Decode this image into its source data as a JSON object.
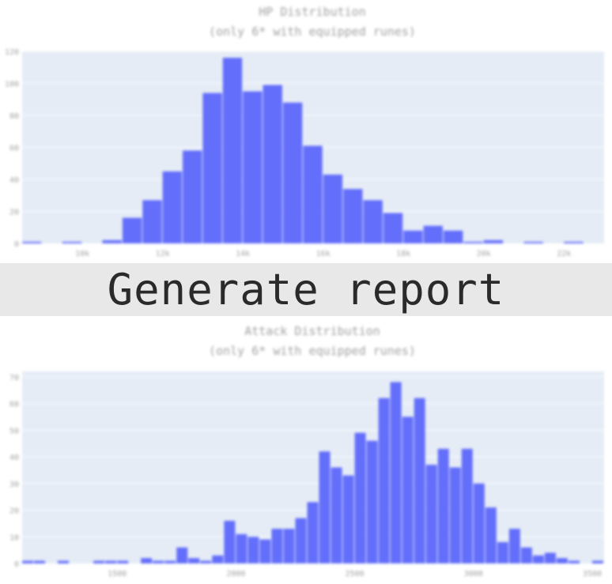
{
  "report_button": {
    "label": "Generate report"
  },
  "charts": [
    {
      "title": "HP Distribution",
      "subtitle": "(only 6* with equipped runes)"
    },
    {
      "title": "Attack Distribution",
      "subtitle": "(only 6* with equipped runes)"
    }
  ],
  "colors": {
    "bar": "#636efa",
    "plot_bg": "#e5ecf6",
    "text": "#a0a0a0",
    "grid": "#ffffff"
  },
  "chart_data": [
    {
      "type": "bar",
      "title": "HP Distribution",
      "subtitle": "(only 6* with equipped runes)",
      "xlim": [
        8500,
        23000
      ],
      "ylim": [
        0,
        120
      ],
      "xticks": [
        10000,
        12000,
        14000,
        16000,
        18000,
        20000,
        22000
      ],
      "xtick_labels": [
        "10k",
        "12k",
        "14k",
        "16k",
        "18k",
        "20k",
        "22k"
      ],
      "yticks": [
        0,
        20,
        40,
        60,
        80,
        100,
        120
      ],
      "bin_width": 500,
      "bin_starts": [
        8500,
        9000,
        9500,
        10000,
        10500,
        11000,
        11500,
        12000,
        12500,
        13000,
        13500,
        14000,
        14500,
        15000,
        15500,
        16000,
        16500,
        17000,
        17500,
        18000,
        18500,
        19000,
        19500,
        20000,
        20500,
        21000,
        21500,
        22000,
        22500
      ],
      "values": [
        1,
        0,
        1,
        0,
        2,
        16,
        27,
        45,
        58,
        94,
        116,
        95,
        99,
        88,
        61,
        43,
        34,
        27,
        19,
        8,
        11,
        8,
        1,
        2,
        0,
        1,
        0,
        1,
        0
      ],
      "grid": true
    },
    {
      "type": "bar",
      "title": "Attack Distribution",
      "subtitle": "(only 6* with equipped runes)",
      "xlim": [
        1100,
        3550
      ],
      "ylim": [
        0,
        72
      ],
      "xticks": [
        1500,
        2000,
        2500,
        3000,
        3500
      ],
      "xtick_labels": [
        "1500",
        "2000",
        "2500",
        "3000",
        "3500"
      ],
      "yticks": [
        0,
        10,
        20,
        30,
        40,
        50,
        60,
        70
      ],
      "bin_width": 50,
      "bin_starts": [
        1100,
        1150,
        1200,
        1250,
        1300,
        1350,
        1400,
        1450,
        1500,
        1550,
        1600,
        1650,
        1700,
        1750,
        1800,
        1850,
        1900,
        1950,
        2000,
        2050,
        2100,
        2150,
        2200,
        2250,
        2300,
        2350,
        2400,
        2450,
        2500,
        2550,
        2600,
        2650,
        2700,
        2750,
        2800,
        2850,
        2900,
        2950,
        3000,
        3050,
        3100,
        3150,
        3200,
        3250,
        3300,
        3350,
        3400,
        3450,
        3500
      ],
      "values": [
        1,
        1,
        0,
        1,
        0,
        0,
        1,
        1,
        1,
        0,
        2,
        1,
        1,
        6,
        2,
        1,
        3,
        16,
        11,
        10,
        9,
        13,
        13,
        17,
        23,
        42,
        36,
        33,
        49,
        46,
        62,
        68,
        55,
        62,
        37,
        43,
        36,
        43,
        30,
        21,
        8,
        13,
        6,
        3,
        4,
        2,
        1,
        0,
        1
      ],
      "grid": true
    }
  ]
}
